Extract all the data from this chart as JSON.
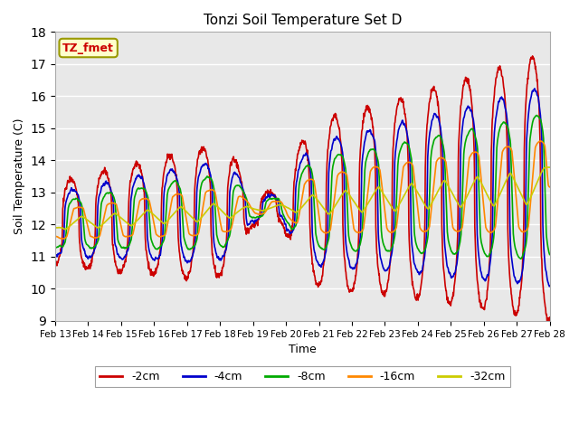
{
  "title": "Tonzi Soil Temperature Set D",
  "xlabel": "Time",
  "ylabel": "Soil Temperature (C)",
  "ylim": [
    9.0,
    18.0
  ],
  "yticks": [
    9.0,
    10.0,
    11.0,
    12.0,
    13.0,
    14.0,
    15.0,
    16.0,
    17.0,
    18.0
  ],
  "date_labels": [
    "Feb 13",
    "Feb 14",
    "Feb 15",
    "Feb 16",
    "Feb 17",
    "Feb 18",
    "Feb 19",
    "Feb 20",
    "Feb 21",
    "Feb 22",
    "Feb 23",
    "Feb 24",
    "Feb 25",
    "Feb 26",
    "Feb 27",
    "Feb 28"
  ],
  "series_colors": [
    "#cc0000",
    "#0000cc",
    "#00aa00",
    "#ff8800",
    "#cccc00"
  ],
  "series_labels": [
    "-2cm",
    "-4cm",
    "-8cm",
    "-16cm",
    "-32cm"
  ],
  "legend_label": "TZ_fmet",
  "legend_box_facecolor": "#ffffcc",
  "legend_box_edgecolor": "#999900",
  "legend_text_color": "#cc0000",
  "bg_color": "#e8e8e8",
  "fig_bg_color": "#ffffff",
  "grid_color": "#ffffff",
  "n_points": 1440,
  "days": 15
}
